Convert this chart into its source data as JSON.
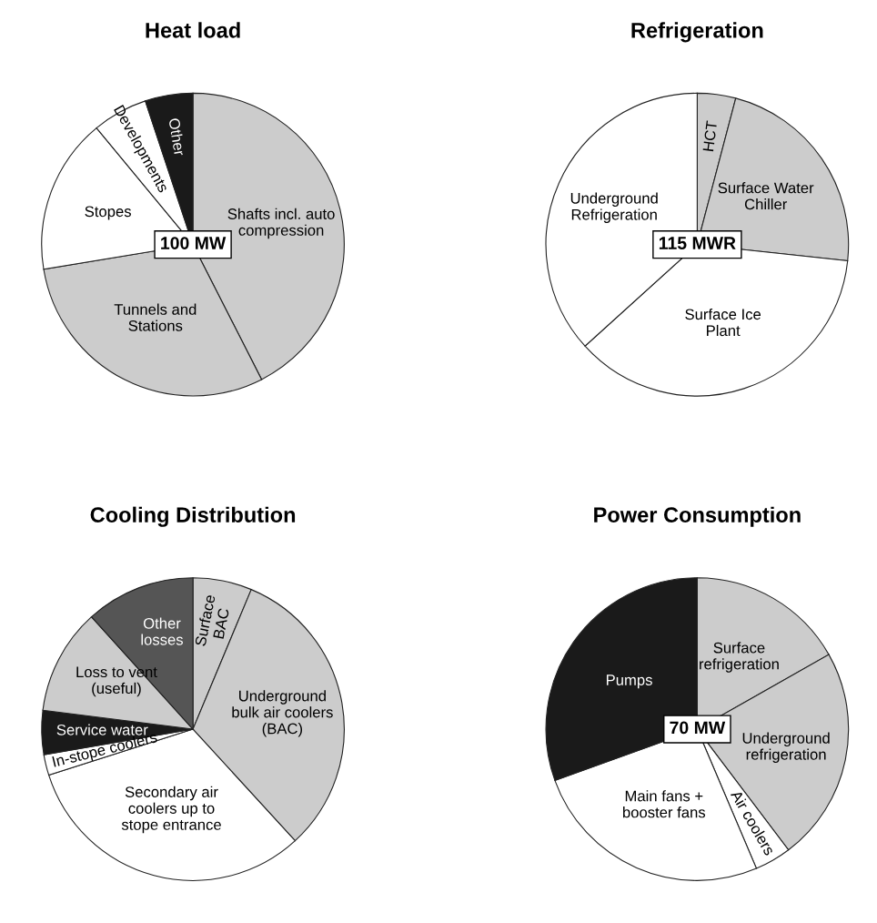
{
  "chart_data": [
    {
      "type": "pie",
      "title": "Heat load",
      "categories": [
        "Shafts incl. auto\ncompression",
        "Tunnels and\nStations",
        "Stopes",
        "Developments",
        "Other"
      ],
      "values": [
        42.5,
        29.9,
        16.6,
        5.9,
        5.1
      ],
      "colors": [
        "#cccccc",
        "#cccccc",
        "#ffffff",
        "#ffffff",
        "#1a1a1a"
      ],
      "annotations": [
        "100 MW"
      ]
    },
    {
      "type": "pie",
      "title": "Refrigeration",
      "categories": [
        "HCT",
        "Surface Water\nChiller",
        "Surface Ice\nPlant",
        "Underground\nRefrigeration"
      ],
      "values": [
        4.1,
        22.6,
        36.6,
        36.7
      ],
      "colors": [
        "#cccccc",
        "#cccccc",
        "#ffffff",
        "#ffffff"
      ],
      "annotations": [
        "115 MWR"
      ]
    },
    {
      "type": "pie",
      "title": "Cooling Distribution",
      "categories": [
        "Surface\nBAC",
        "Underground\nbulk air coolers\n(BAC)",
        "Secondary air\ncoolers up to\nstope entrance",
        "In-stope coolers",
        "Service water",
        "Loss to vent\n(useful)",
        "Other\nlosses"
      ],
      "values": [
        6.3,
        31.9,
        31.9,
        2.2,
        4.7,
        11.3,
        11.7
      ],
      "colors": [
        "#cccccc",
        "#cccccc",
        "#ffffff",
        "#ffffff",
        "#1a1a1a",
        "#cccccc",
        "#555555"
      ]
    },
    {
      "type": "pie",
      "title": "Power Consumption",
      "categories": [
        "Surface\nrefrigeration",
        "Underground\nrefrigeration",
        "Air coolers",
        "Main fans +\nbooster fans",
        "Pumps"
      ],
      "values": [
        16.8,
        22.9,
        3.9,
        25.9,
        30.5
      ],
      "colors": [
        "#cccccc",
        "#cccccc",
        "#ffffff",
        "#ffffff",
        "#1a1a1a"
      ],
      "annotations": [
        "70 MW"
      ]
    }
  ]
}
